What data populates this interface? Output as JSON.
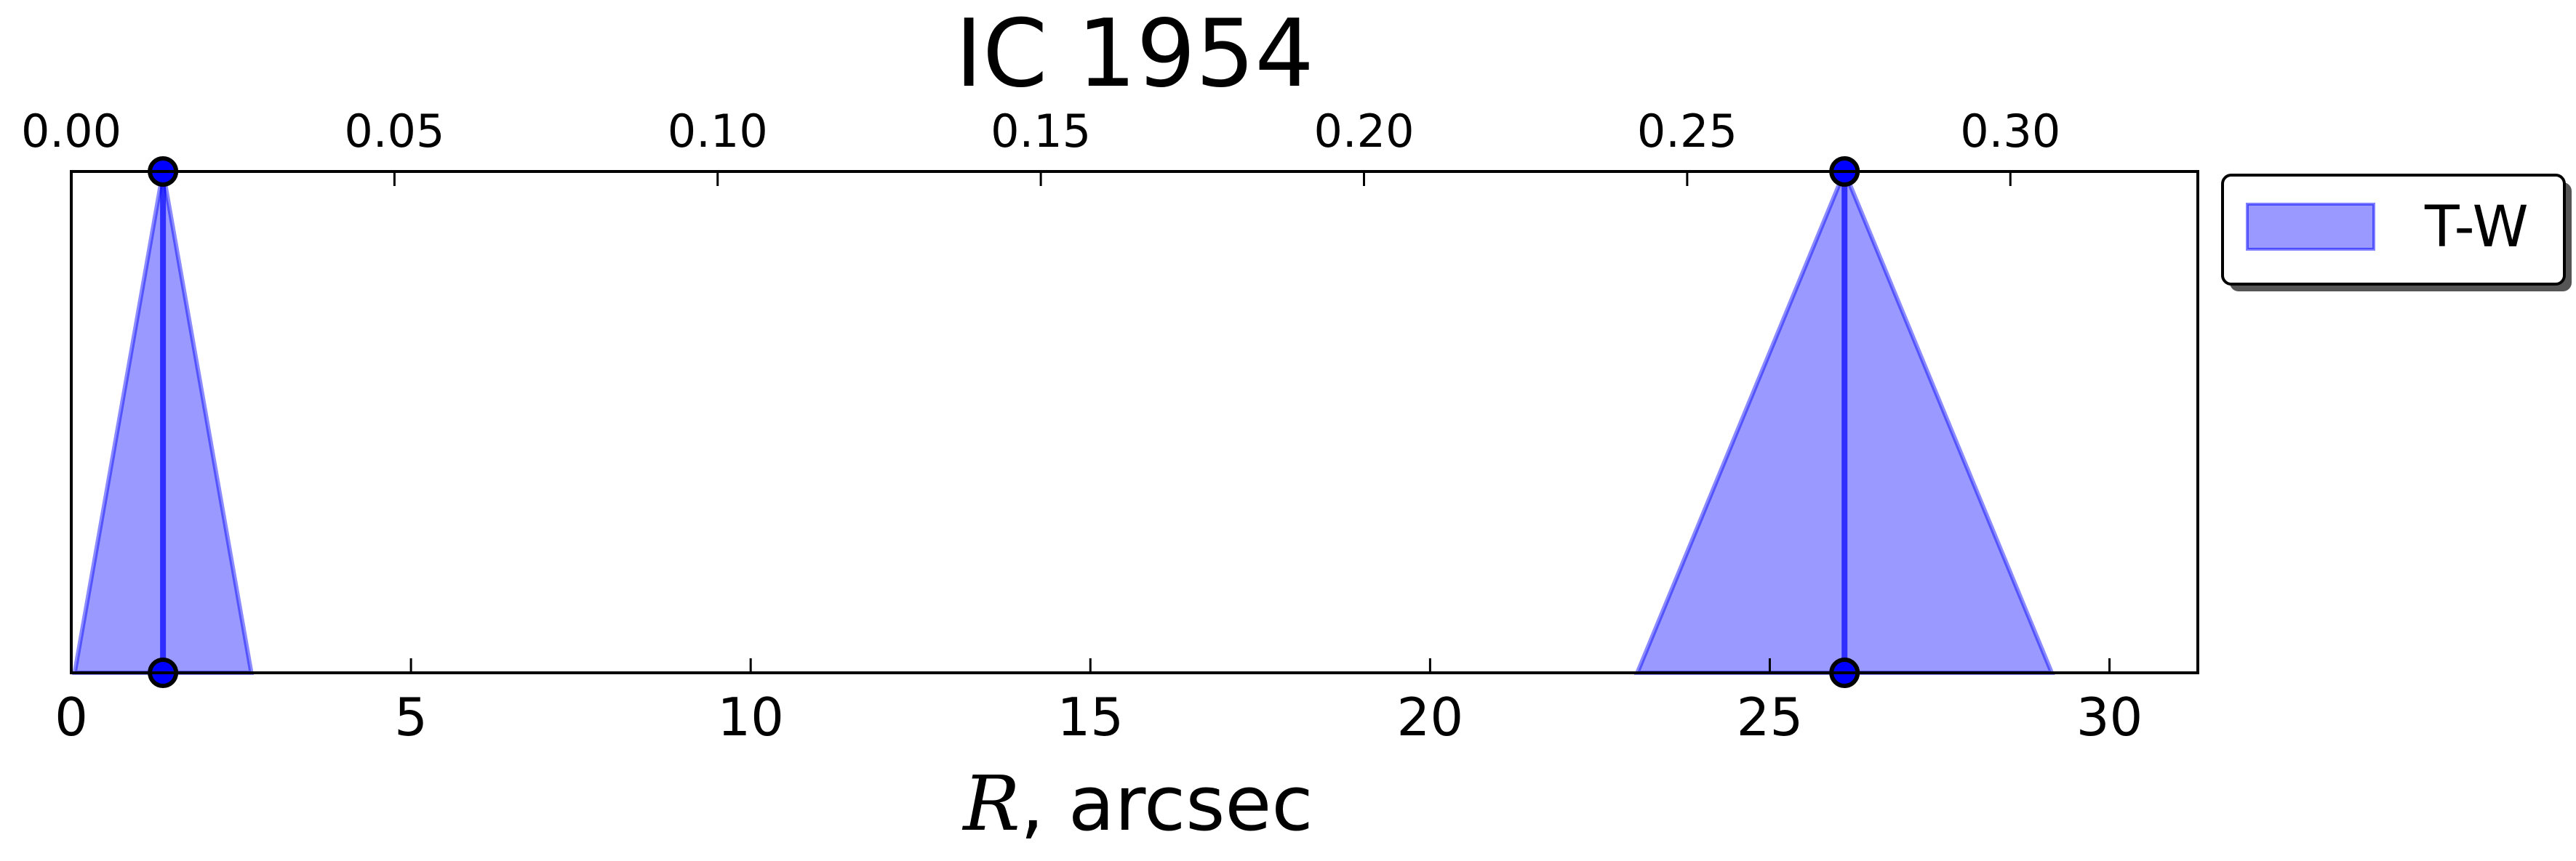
{
  "chart_data": {
    "type": "area",
    "title": "IC 1954",
    "xlabel_var": "R",
    "xlabel_rest": ", arcsec",
    "xlim": [
      0,
      31.3
    ],
    "x_ticks": [
      0,
      5,
      10,
      15,
      20,
      25,
      30
    ],
    "x_tick_labels": [
      "0",
      "5",
      "10",
      "15",
      "20",
      "25",
      "30"
    ],
    "top_axis": {
      "lim": [
        0,
        0.329
      ],
      "ticks": [
        0.0,
        0.05,
        0.1,
        0.15,
        0.2,
        0.25,
        0.3
      ],
      "tick_labels": [
        "0.00",
        "0.05",
        "0.10",
        "0.15",
        "0.20",
        "0.25",
        "0.30"
      ]
    },
    "ylim": [
      0,
      1
    ],
    "y_ticks_visible": false,
    "grid": false,
    "legend": {
      "placement": "outside-right-top",
      "entries": [
        "T-W"
      ]
    },
    "series": [
      {
        "name": "T-W",
        "color": "#0000ff",
        "fill_opacity": 0.4,
        "bars": [
          {
            "center": 1.35,
            "left": 0.05,
            "right": 2.65,
            "points": [
              [
                1.35,
                0.0
              ],
              [
                1.35,
                1.0
              ]
            ]
          },
          {
            "center": 26.1,
            "left": 23.05,
            "right": 29.15,
            "points": [
              [
                26.1,
                0.0
              ],
              [
                26.1,
                1.0
              ]
            ]
          }
        ]
      }
    ]
  }
}
